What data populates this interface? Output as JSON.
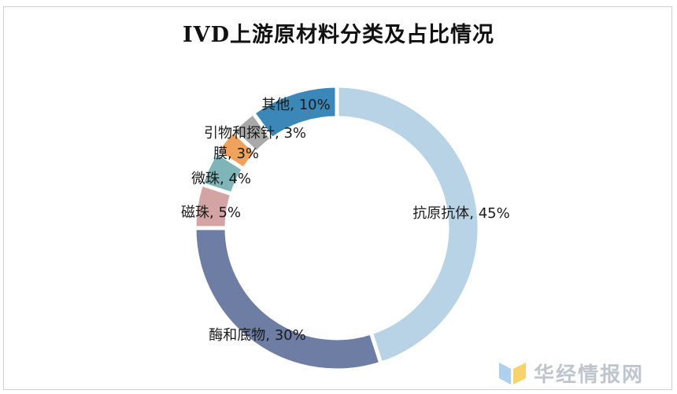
{
  "chart_data": {
    "type": "pie",
    "variant": "donut",
    "title": "IVD上游原材料分类及占比情况",
    "slices": [
      {
        "name": "抗原抗体",
        "value": 45,
        "label": "抗原抗体, 45%",
        "color": "#b8d3e5"
      },
      {
        "name": "酶和底物",
        "value": 30,
        "label": "酶和底物, 30%",
        "color": "#6e7da3"
      },
      {
        "name": "磁珠",
        "value": 5,
        "label": "磁珠, 5%",
        "color": "#d4a4a4"
      },
      {
        "name": "微珠",
        "value": 4,
        "label": "微珠, 4%",
        "color": "#7fb5b9"
      },
      {
        "name": "膜",
        "value": 3,
        "label": "膜, 3%",
        "color": "#f0a15c"
      },
      {
        "name": "引物和探针",
        "value": 3,
        "label": "引物和探针, 3%",
        "color": "#a9a9a9"
      },
      {
        "name": "其他",
        "value": 10,
        "label": "其他, 10%",
        "color": "#3a87b8"
      }
    ],
    "legend": "none"
  },
  "watermark": {
    "text": "华经情报网",
    "colors": [
      "#aed0ee",
      "#f6d36b"
    ]
  }
}
